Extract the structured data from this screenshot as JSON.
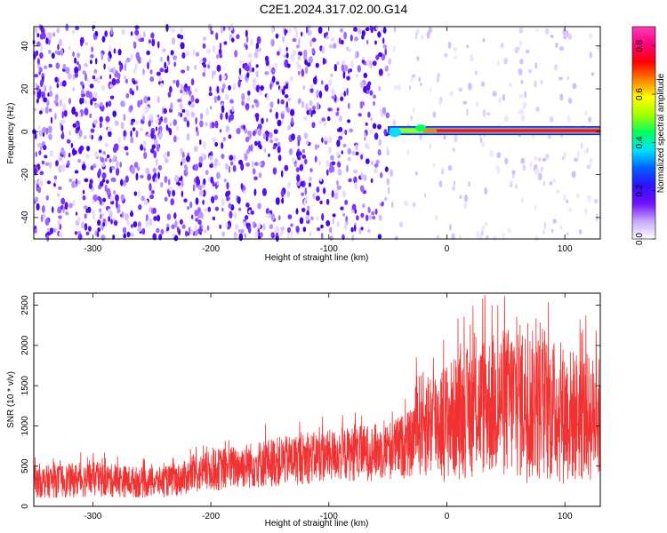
{
  "title": "C2E1.2024.317.02.00.G14",
  "chart_data": [
    {
      "type": "heatmap",
      "xlabel": "Height of straight line (km)",
      "ylabel": "Frequency (Hz)",
      "xlim": [
        -350,
        130
      ],
      "ylim": [
        -50,
        49
      ],
      "x_ticks": [
        -300,
        -200,
        -100,
        0,
        100
      ],
      "y_ticks": [
        -40,
        -20,
        0,
        20,
        40
      ],
      "colorbar": {
        "label": "Normalized spectral amplitude",
        "range": [
          0,
          0.88
        ],
        "ticks": [
          0.0,
          0.2,
          0.4,
          0.6,
          0.8
        ],
        "palette": [
          "#ffffff",
          "#c8a8ff",
          "#7010ff",
          "#3010ff",
          "#0060ff",
          "#00e0ff",
          "#00ff60",
          "#a0ff00",
          "#ffff00",
          "#ff8000",
          "#ff0000",
          "#ff0080",
          "#ff3cb4"
        ]
      },
      "features": {
        "noise_region_x": [
          -350,
          -50
        ],
        "noise_intensity_left": 0.13,
        "noise_intensity_right": 0.03,
        "carrier_line_freq": 0.5,
        "carrier_start_x": -50,
        "carrier_amplitude_peak": 0.85
      }
    },
    {
      "type": "line",
      "xlabel": "Height of straight line (km)",
      "ylabel": "SNR (10 * v/v)",
      "xlim": [
        -350,
        130
      ],
      "ylim": [
        0,
        2650
      ],
      "x_ticks": [
        -300,
        -200,
        -100,
        0,
        100
      ],
      "y_ticks": [
        0,
        500,
        1000,
        1500,
        2000,
        2500
      ],
      "color": "#f03232",
      "envelope": {
        "x": [
          -350,
          -300,
          -250,
          -230,
          -200,
          -150,
          -100,
          -50,
          -30,
          -25,
          0,
          30,
          60,
          100,
          130
        ],
        "upper": [
          500,
          550,
          480,
          520,
          700,
          850,
          950,
          1050,
          1200,
          1650,
          1800,
          2100,
          2300,
          2000,
          1850
        ],
        "lower": [
          100,
          110,
          100,
          120,
          180,
          230,
          300,
          320,
          350,
          350,
          300,
          350,
          300,
          250,
          280
        ]
      }
    }
  ]
}
